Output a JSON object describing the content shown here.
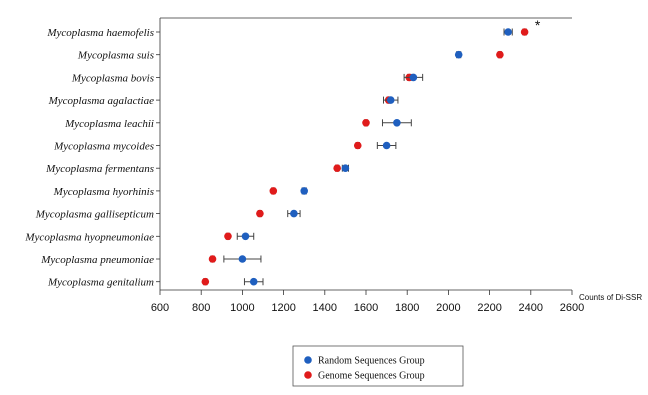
{
  "chart_data": {
    "type": "scatter",
    "orientation": "horizontal",
    "xlabel": "Counts of Di-SSR",
    "ylabel": "",
    "title": "",
    "xlim": [
      600,
      2600
    ],
    "xticks": [
      600,
      800,
      1000,
      1200,
      1400,
      1600,
      1800,
      2000,
      2200,
      2400,
      2600
    ],
    "grid": false,
    "legend_position": "bottom-center",
    "categories": [
      "Mycoplasma haemofelis",
      "Mycoplasma suis",
      "Mycoplasma bovis",
      "Mycoplasma agalactiae",
      "Mycoplasma leachii",
      "Mycoplasma mycoides",
      "Mycoplasma fermentans",
      "Mycoplasma hyorhinis",
      "Mycoplasma gallisepticum",
      "Mycoplasma hyopneumoniae",
      "Mycoplasma pneumoniae",
      "Mycoplasma genitalium"
    ],
    "series": [
      {
        "name": "Random Sequences Group",
        "color": "#1f5fbf",
        "values": [
          2290,
          2050,
          1830,
          1720,
          1750,
          1700,
          1500,
          1300,
          1250,
          1015,
          1000,
          1055
        ],
        "errors": [
          20,
          10,
          45,
          35,
          70,
          45,
          15,
          10,
          30,
          40,
          90,
          45
        ]
      },
      {
        "name": "Genome Sequences Group",
        "color": "#e01b1b",
        "values": [
          2370,
          2250,
          1810,
          1710,
          1600,
          1560,
          1460,
          1150,
          1085,
          930,
          855,
          820
        ]
      }
    ],
    "annotations": [
      {
        "text": "*",
        "category": "Mycoplasma haemofelis"
      }
    ]
  }
}
